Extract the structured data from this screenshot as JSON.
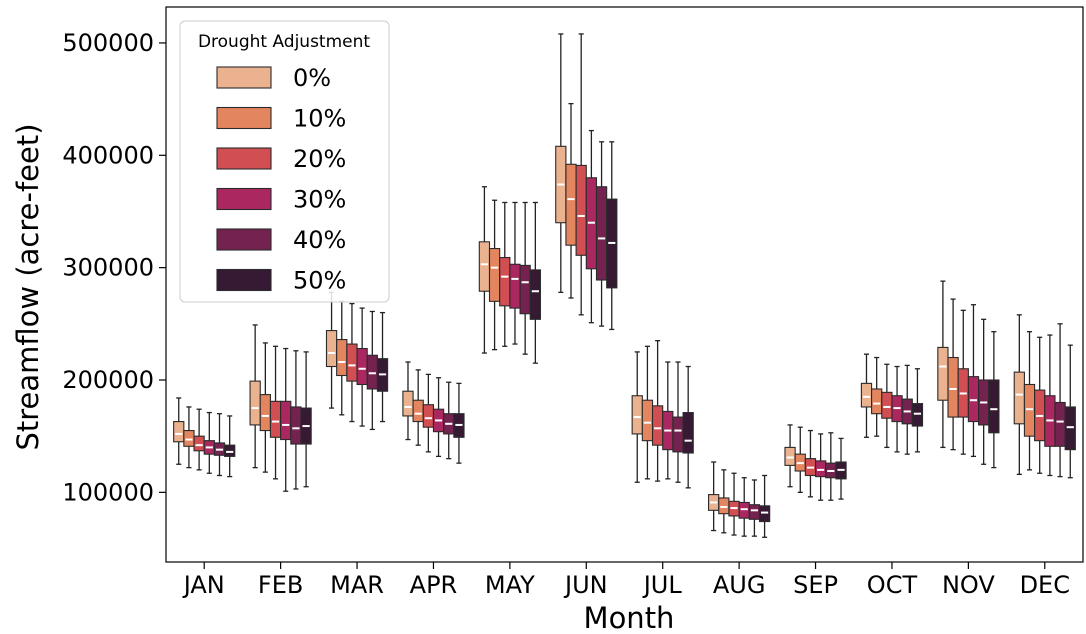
{
  "chart_data": {
    "type": "box",
    "xlabel": "Month",
    "ylabel": "Streamflow (acre-feet)",
    "ylim": [
      38000,
      532000
    ],
    "yticks": [
      100000,
      200000,
      300000,
      400000,
      500000
    ],
    "ytick_labels": [
      "100000",
      "200000",
      "300000",
      "400000",
      "500000"
    ],
    "categories": [
      "JAN",
      "FEB",
      "MAR",
      "APR",
      "MAY",
      "JUN",
      "JUL",
      "AUG",
      "SEP",
      "OCT",
      "NOV",
      "DEC"
    ],
    "grid": false,
    "legend": {
      "title": "Drought Adjustment",
      "position": "top-left"
    },
    "series": [
      {
        "name": "0%",
        "color": "#EBB290",
        "boxes": [
          [
            125000,
            145000,
            152000,
            163000,
            184000
          ],
          [
            122000,
            160000,
            175000,
            199000,
            249000
          ],
          [
            175000,
            212000,
            224000,
            244000,
            278000
          ],
          [
            147000,
            168000,
            176000,
            190000,
            216000
          ],
          [
            224000,
            279000,
            303000,
            323000,
            372000
          ],
          [
            278000,
            340000,
            374000,
            408000,
            508000
          ],
          [
            109000,
            152000,
            167000,
            186000,
            225000
          ],
          [
            66000,
            84000,
            91000,
            98000,
            127000
          ],
          [
            105000,
            124000,
            131000,
            140000,
            160000
          ],
          [
            149000,
            176000,
            185000,
            197000,
            223000
          ],
          [
            140000,
            182000,
            212000,
            229000,
            288000
          ],
          [
            116000,
            161000,
            187000,
            207000,
            258000
          ]
        ]
      },
      {
        "name": "10%",
        "color": "#E3855F",
        "boxes": [
          [
            122000,
            141000,
            147000,
            155000,
            176000
          ],
          [
            118000,
            155000,
            168000,
            187000,
            233000
          ],
          [
            169000,
            204000,
            216000,
            236000,
            270000
          ],
          [
            142000,
            163000,
            170000,
            182000,
            209000
          ],
          [
            227000,
            270000,
            300000,
            317000,
            360000
          ],
          [
            273000,
            320000,
            361000,
            392000,
            446000
          ],
          [
            112000,
            146000,
            162000,
            182000,
            230000
          ],
          [
            64000,
            81000,
            87000,
            95000,
            120000
          ],
          [
            100000,
            119000,
            126000,
            134000,
            158000
          ],
          [
            150000,
            170000,
            179000,
            192000,
            220000
          ],
          [
            138000,
            167000,
            192000,
            220000,
            272000
          ],
          [
            120000,
            150000,
            174000,
            196000,
            243000
          ]
        ]
      },
      {
        "name": "20%",
        "color": "#D14E52",
        "boxes": [
          [
            120000,
            137000,
            142000,
            150000,
            174000
          ],
          [
            112000,
            149000,
            163000,
            181000,
            230000
          ],
          [
            163000,
            199000,
            213000,
            232000,
            268000
          ],
          [
            136000,
            158000,
            166000,
            178000,
            205000
          ],
          [
            230000,
            266000,
            292000,
            309000,
            358000
          ],
          [
            258000,
            311000,
            346000,
            391000,
            508000
          ],
          [
            110000,
            142000,
            157000,
            177000,
            235000
          ],
          [
            62000,
            79000,
            86000,
            92000,
            117000
          ],
          [
            96000,
            115000,
            122000,
            130000,
            155000
          ],
          [
            140000,
            166000,
            176000,
            189000,
            214000
          ],
          [
            134000,
            167000,
            188000,
            210000,
            262000
          ],
          [
            117000,
            146000,
            168000,
            191000,
            238000
          ]
        ]
      },
      {
        "name": "30%",
        "color": "#AB2760",
        "boxes": [
          [
            117000,
            134000,
            140000,
            146000,
            171000
          ],
          [
            101000,
            147000,
            160000,
            181000,
            228000
          ],
          [
            159000,
            196000,
            210000,
            228000,
            264000
          ],
          [
            132000,
            154000,
            164000,
            174000,
            202000
          ],
          [
            232000,
            264000,
            290000,
            303000,
            358000
          ],
          [
            251000,
            299000,
            340000,
            380000,
            422000
          ],
          [
            112000,
            138000,
            155000,
            172000,
            216000
          ],
          [
            61000,
            77000,
            85000,
            91000,
            113000
          ],
          [
            93000,
            114000,
            120000,
            128000,
            152000
          ],
          [
            136000,
            163000,
            175000,
            186000,
            212000
          ],
          [
            132000,
            163000,
            182000,
            203000,
            267000
          ],
          [
            115000,
            141000,
            164000,
            186000,
            240000
          ]
        ]
      },
      {
        "name": "40%",
        "color": "#74224F",
        "boxes": [
          [
            115000,
            133000,
            138000,
            144000,
            170000
          ],
          [
            103000,
            143000,
            157000,
            176000,
            226000
          ],
          [
            156000,
            192000,
            206000,
            222000,
            261000
          ],
          [
            130000,
            152000,
            161000,
            170000,
            198000
          ],
          [
            223000,
            259000,
            287000,
            302000,
            358000
          ],
          [
            248000,
            289000,
            326000,
            372000,
            412000
          ],
          [
            109000,
            136000,
            155000,
            167000,
            216000
          ],
          [
            61000,
            76000,
            84000,
            89000,
            111000
          ],
          [
            93000,
            113000,
            119000,
            126000,
            153000
          ],
          [
            134000,
            161000,
            172000,
            183000,
            213000
          ],
          [
            125000,
            160000,
            180000,
            200000,
            254000
          ],
          [
            114000,
            141000,
            163000,
            180000,
            250000
          ]
        ]
      },
      {
        "name": "50%",
        "color": "#361A33",
        "boxes": [
          [
            114000,
            132000,
            136000,
            142000,
            168000
          ],
          [
            105000,
            143000,
            159000,
            175000,
            225000
          ],
          [
            163000,
            190000,
            205000,
            219000,
            260000
          ],
          [
            126000,
            149000,
            160000,
            170000,
            197000
          ],
          [
            215000,
            254000,
            279000,
            298000,
            358000
          ],
          [
            245000,
            282000,
            322000,
            361000,
            412000
          ],
          [
            104000,
            135000,
            146000,
            171000,
            212000
          ],
          [
            60000,
            74000,
            82000,
            88000,
            115000
          ],
          [
            94000,
            112000,
            120000,
            127000,
            148000
          ],
          [
            136000,
            159000,
            170000,
            179000,
            210000
          ],
          [
            122000,
            153000,
            174000,
            200000,
            243000
          ],
          [
            113000,
            138000,
            158000,
            176000,
            231000
          ]
        ]
      }
    ]
  }
}
